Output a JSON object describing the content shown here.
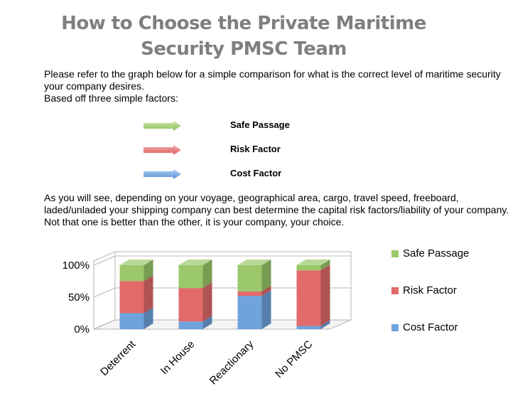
{
  "page": {
    "title_line1": "How to Choose the Private Maritime",
    "title_line2": "Security PMSC Team",
    "intro": "Please refer to the graph below for a simple comparison for what is the correct level of maritime security your company desires.",
    "intro2": "Based off three simple factors:",
    "factors": [
      {
        "label": "Safe Passage",
        "color": "#9bc86a"
      },
      {
        "label": "Risk Factor",
        "color": "#e26a6a"
      },
      {
        "label": "Cost Factor",
        "color": "#6fa3dc"
      }
    ],
    "body": "As you will see, depending on your voyage, geographical area, cargo, travel speed, freeboard, laded/unladed your shipping company can best determine the capital risk factors/liability of your company. Not that one is better than the other, it is your company, your choice."
  },
  "chart_data": {
    "type": "bar",
    "stacked": true,
    "percent": true,
    "three_d": true,
    "categories": [
      "Deterrent",
      "In House",
      "Reactionary",
      "No PMSC"
    ],
    "series": [
      {
        "name": "Cost Factor",
        "values": [
          25,
          12,
          52,
          5
        ],
        "color": "#6fa3dc"
      },
      {
        "name": "Risk Factor",
        "values": [
          50,
          52,
          7,
          87
        ],
        "color": "#e26a6a"
      },
      {
        "name": "Safe Passage",
        "values": [
          25,
          36,
          41,
          8
        ],
        "color": "#9bc86a"
      }
    ],
    "ylim": [
      0,
      100
    ],
    "yticks": [
      "0%",
      "50%",
      "100%"
    ],
    "legend": [
      "Safe Passage",
      "Risk Factor",
      "Cost Factor"
    ],
    "legend_position": "right",
    "xlabel": "",
    "ylabel": "",
    "title": ""
  }
}
